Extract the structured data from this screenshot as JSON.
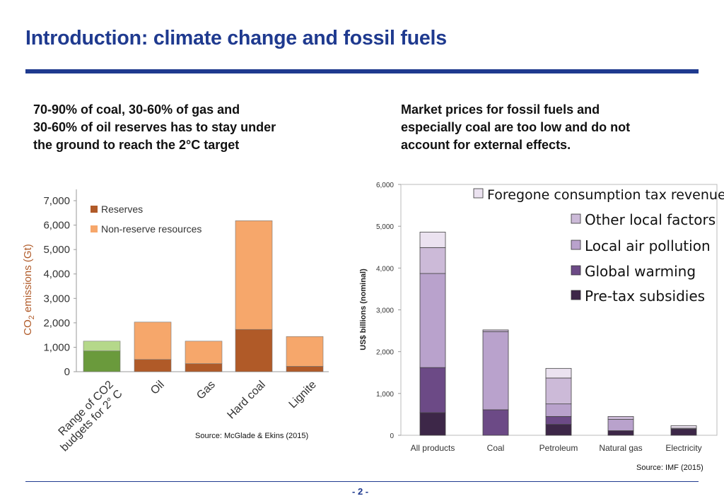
{
  "slide": {
    "title": "Introduction: climate change and fossil fuels",
    "left_claim": [
      "70-90% of coal, 30-60% of gas and",
      "30-60% of oil reserves has to stay under",
      "the ground to reach the 2°C target"
    ],
    "right_claim": [
      "Market prices for fossil fuels and",
      "especially coal are too low and do not",
      "account for external effects."
    ],
    "left_source": "Source: McGlade & Ekins (2015)",
    "right_source": "Source: IMF (2015)",
    "page_number": "- 2 -"
  },
  "chart_data": [
    {
      "type": "bar",
      "stacked": true,
      "categories": [
        "Range of CO2 budgets for 2° C",
        "Oil",
        "Gas",
        "Hard coal",
        "Lignite"
      ],
      "series": [
        {
          "name": "Reserves",
          "values": [
            850,
            500,
            330,
            1730,
            220
          ],
          "color": "#b05a28"
        },
        {
          "name": "Non-reserve resources",
          "values": [
            400,
            1530,
            920,
            4450,
            1220
          ],
          "color": "#f6a76b"
        }
      ],
      "budget_colors": [
        "#6a9a3c",
        "#b5d88a"
      ],
      "ylabel": "CO2 emissions (Gt)",
      "ylim": [
        0,
        7000
      ],
      "yticks": [
        "0",
        "1,000",
        "2,000",
        "3,000",
        "4,000",
        "5,000",
        "6,000",
        "7,000"
      ],
      "legend": "top-left"
    },
    {
      "type": "bar",
      "stacked": true,
      "categories": [
        "All products",
        "Coal",
        "Petroleum",
        "Natural gas",
        "Electricity"
      ],
      "series": [
        {
          "name": "Pre-tax subsidies",
          "values": [
            540,
            0,
            260,
            110,
            150
          ],
          "color": "#3d2748"
        },
        {
          "name": "Global warming",
          "values": [
            1080,
            610,
            190,
            0,
            0
          ],
          "color": "#6c4a86"
        },
        {
          "name": "Local air pollution",
          "values": [
            2250,
            1870,
            300,
            270,
            20
          ],
          "color": "#b9a2cc"
        },
        {
          "name": "Other local factors",
          "values": [
            620,
            40,
            620,
            70,
            0
          ],
          "color": "#ccbad8"
        },
        {
          "name": "Foregone consumption tax revenue",
          "values": [
            370,
            0,
            230,
            0,
            60
          ],
          "color": "#ebe2f0"
        }
      ],
      "ylabel": "US$ billions (nominal)",
      "ylim": [
        0,
        6000
      ],
      "yticks": [
        "0",
        "1,000",
        "2,000",
        "3,000",
        "4,000",
        "5,000",
        "6,000"
      ],
      "legend": "top-right"
    }
  ]
}
